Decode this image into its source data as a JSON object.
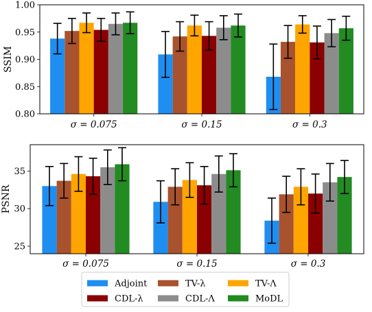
{
  "chart_data": [
    {
      "type": "bar",
      "ylabel": "SSIM",
      "ylim": [
        0.8,
        1.0
      ],
      "yticks": [
        "0.80",
        "0.85",
        "0.90",
        "0.95",
        "1.00"
      ],
      "ytick_values": [
        0.8,
        0.85,
        0.9,
        0.95,
        1.0
      ],
      "categories": [
        "σ = 0.075",
        "σ = 0.15",
        "σ = 0.3"
      ],
      "error_bars": true,
      "series": [
        {
          "name": "Adjoint",
          "values": [
            0.938,
            0.909,
            0.868
          ],
          "errors": [
            0.028,
            0.042,
            0.06
          ]
        },
        {
          "name": "TV-λ",
          "values": [
            0.952,
            0.942,
            0.932
          ],
          "errors": [
            0.023,
            0.027,
            0.03
          ]
        },
        {
          "name": "TV-Λ",
          "values": [
            0.967,
            0.962,
            0.964
          ],
          "errors": [
            0.018,
            0.019,
            0.016
          ]
        },
        {
          "name": "CDL-λ",
          "values": [
            0.954,
            0.943,
            0.931
          ],
          "errors": [
            0.021,
            0.026,
            0.03
          ]
        },
        {
          "name": "CDL-Λ",
          "values": [
            0.965,
            0.958,
            0.948
          ],
          "errors": [
            0.02,
            0.022,
            0.025
          ]
        },
        {
          "name": "MoDL",
          "values": [
            0.967,
            0.962,
            0.957
          ],
          "errors": [
            0.02,
            0.021,
            0.022
          ]
        }
      ]
    },
    {
      "type": "bar",
      "ylabel": "PSNR",
      "ylim": [
        24,
        38.5
      ],
      "yticks": [
        "25",
        "30",
        "35"
      ],
      "ytick_values": [
        25,
        30,
        35
      ],
      "categories": [
        "σ = 0.075",
        "σ = 0.15",
        "σ = 0.3"
      ],
      "error_bars": true,
      "series": [
        {
          "name": "Adjoint",
          "values": [
            33.0,
            30.9,
            28.4
          ],
          "errors": [
            2.6,
            2.8,
            3.0
          ]
        },
        {
          "name": "TV-λ",
          "values": [
            33.7,
            32.9,
            31.9
          ],
          "errors": [
            2.3,
            2.4,
            2.4
          ]
        },
        {
          "name": "TV-Λ",
          "values": [
            34.6,
            33.8,
            32.9
          ],
          "errors": [
            2.3,
            2.3,
            2.4
          ]
        },
        {
          "name": "CDL-λ",
          "values": [
            34.3,
            33.1,
            32.0
          ],
          "errors": [
            2.4,
            2.5,
            2.6
          ]
        },
        {
          "name": "CDL-Λ",
          "values": [
            35.5,
            34.6,
            33.5
          ],
          "errors": [
            2.3,
            2.4,
            2.5
          ]
        },
        {
          "name": "MoDL",
          "values": [
            35.9,
            35.1,
            34.2
          ],
          "errors": [
            2.2,
            2.2,
            2.2
          ]
        }
      ]
    }
  ],
  "legend": {
    "placement": "bottom-center",
    "columns": 3,
    "entries": [
      {
        "label": "Adjoint",
        "color": "#1f8ef1"
      },
      {
        "label": "TV-λ",
        "color": "#a8522e"
      },
      {
        "label": "TV-Λ",
        "color": "#ffa500"
      },
      {
        "label": "CDL-λ",
        "color": "#8b0000"
      },
      {
        "label": "CDL-Λ",
        "color": "#8c8c8c"
      },
      {
        "label": "MoDL",
        "color": "#228b22"
      }
    ]
  },
  "colors": [
    "#1f8ef1",
    "#a8522e",
    "#ffa500",
    "#8b0000",
    "#8c8c8c",
    "#228b22"
  ]
}
